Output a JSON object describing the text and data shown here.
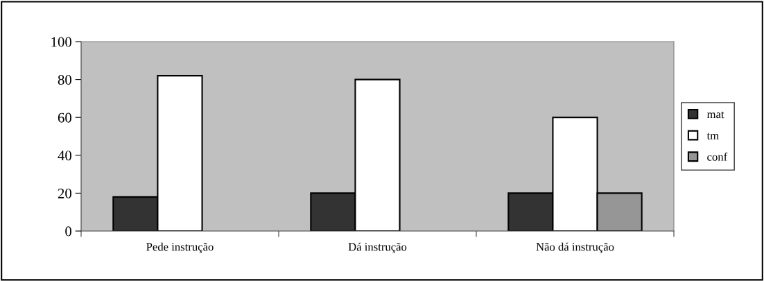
{
  "chart_data": {
    "type": "bar",
    "categories": [
      "Pede instrução",
      "Dá instrução",
      "Não dá instrução"
    ],
    "series": [
      {
        "name": "mat",
        "color": "#333333",
        "values": [
          18,
          20,
          20
        ]
      },
      {
        "name": "tm",
        "color": "#ffffff",
        "values": [
          82,
          80,
          60
        ]
      },
      {
        "name": "conf",
        "color": "#969696",
        "values": [
          null,
          null,
          20
        ]
      }
    ],
    "ylim": [
      0,
      100
    ],
    "yticks": [
      0,
      20,
      40,
      60,
      80,
      100
    ],
    "grid": false,
    "legend": "right"
  }
}
